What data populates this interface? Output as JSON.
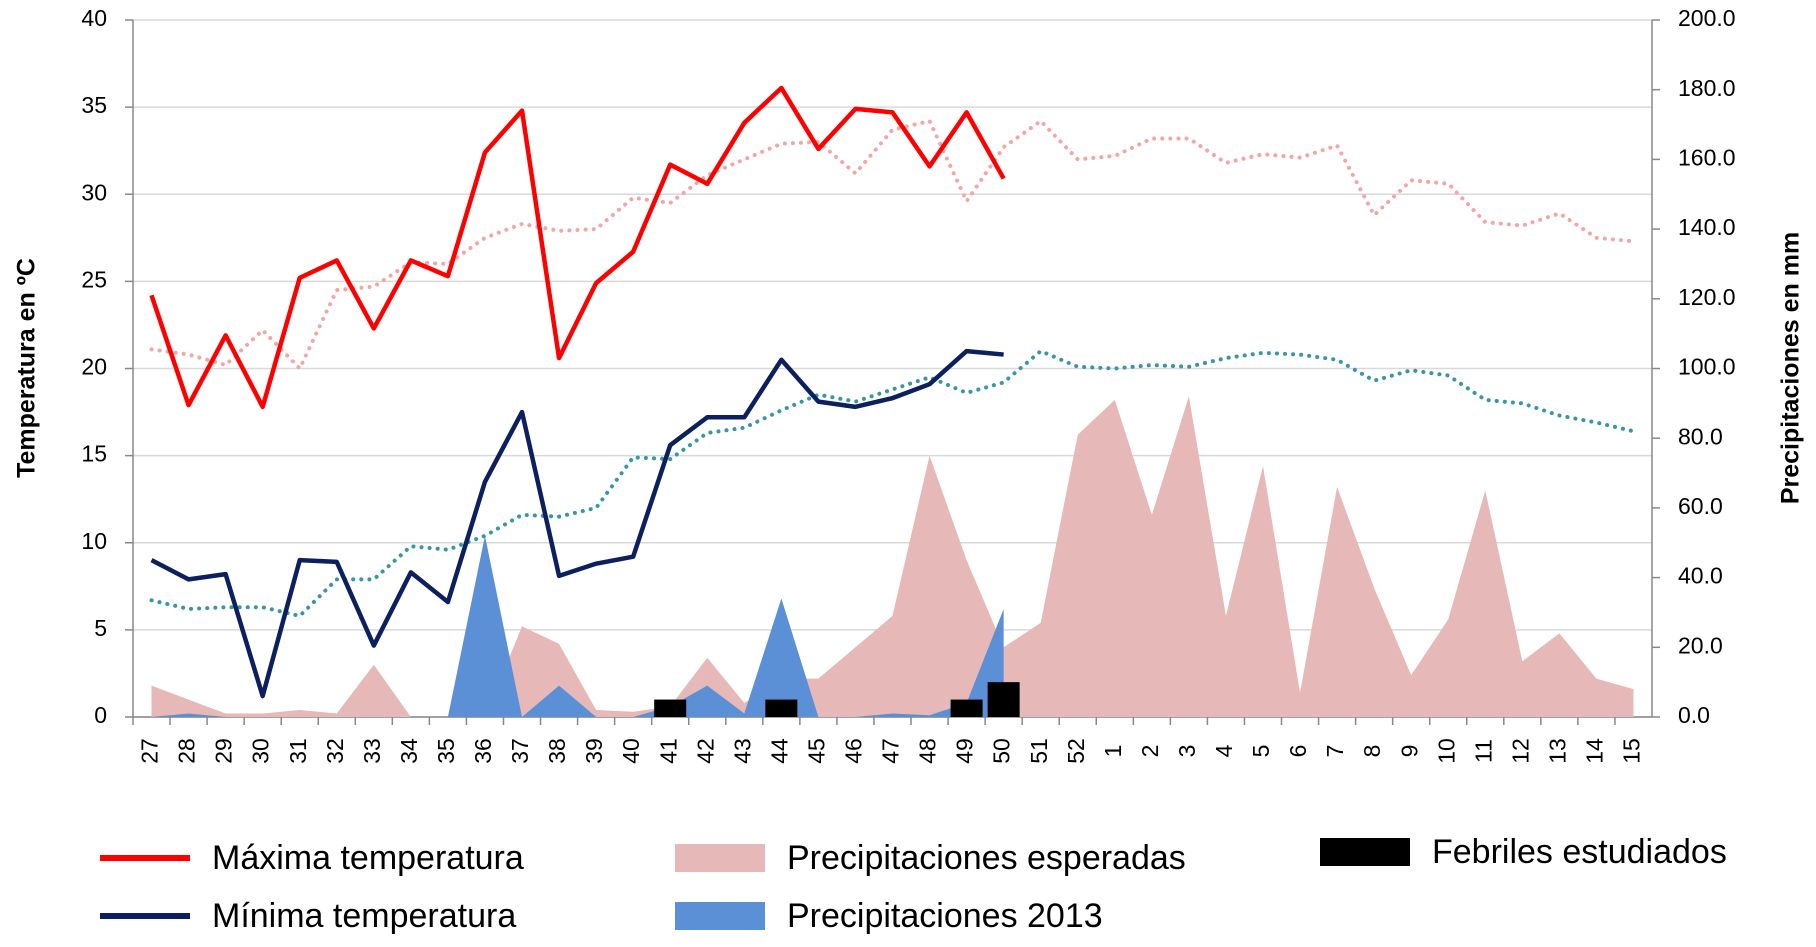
{
  "chart_data": {
    "type": "line",
    "categories": [
      "27",
      "28",
      "29",
      "30",
      "31",
      "32",
      "33",
      "34",
      "35",
      "36",
      "37",
      "38",
      "39",
      "40",
      "41",
      "42",
      "43",
      "44",
      "45",
      "46",
      "47",
      "48",
      "49",
      "50",
      "51",
      "52",
      "1",
      "2",
      "3",
      "4",
      "5",
      "6",
      "7",
      "8",
      "9",
      "10",
      "11",
      "12",
      "13",
      "14",
      "15"
    ],
    "ylabel": "Temperatura en ºC",
    "y2label": "Precipitaciones en mm",
    "ylim": [
      0,
      40
    ],
    "yticks": [
      0,
      5,
      10,
      15,
      20,
      25,
      30,
      35,
      40
    ],
    "y2lim": [
      0,
      200
    ],
    "y2ticks": [
      {
        "value": 0,
        "label": "0.0"
      },
      {
        "value": 20,
        "label": "20.0"
      },
      {
        "value": 40,
        "label": "40.0"
      },
      {
        "value": 60,
        "label": "60.0"
      },
      {
        "value": 80,
        "label": "80.0"
      },
      {
        "value": 100,
        "label": "100.0"
      },
      {
        "value": 120,
        "label": "120.0"
      },
      {
        "value": 140,
        "label": "140.0"
      },
      {
        "value": 160,
        "label": "160.0"
      },
      {
        "value": 180,
        "label": "180.0"
      },
      {
        "value": 200,
        "label": "200.0"
      }
    ],
    "grid": true,
    "legend": "bottom",
    "series": [
      {
        "name": "Precipitaciones esperadas",
        "type": "area",
        "axis": "y2",
        "color": "#e6b8b7",
        "values": [
          9,
          5,
          1,
          1,
          2,
          1,
          15,
          0,
          0,
          0,
          26,
          21,
          2,
          1.5,
          3,
          17,
          4,
          11,
          11,
          20,
          29,
          75,
          45,
          20,
          27,
          81,
          91,
          58,
          92,
          29,
          72,
          7,
          66,
          37,
          12,
          28,
          65,
          16,
          24,
          11,
          8
        ]
      },
      {
        "name": "Precipitaciones 2013",
        "type": "area",
        "axis": "y2",
        "color": "#5b8fd6",
        "values": [
          0,
          1,
          0,
          0,
          0,
          0,
          0,
          0,
          0,
          52,
          0,
          9,
          0,
          0,
          3,
          9,
          1,
          34,
          0,
          0,
          1,
          0.5,
          4,
          31,
          null,
          null,
          null,
          null,
          null,
          null,
          null,
          null,
          null,
          null,
          null,
          null,
          null,
          null,
          null,
          null,
          null
        ]
      },
      {
        "name": "Febriles estudiados",
        "type": "bar",
        "color": "#000000",
        "values": [
          null,
          null,
          null,
          null,
          null,
          null,
          null,
          null,
          null,
          null,
          null,
          null,
          null,
          null,
          1,
          null,
          null,
          1,
          null,
          null,
          null,
          null,
          1,
          2,
          null,
          null,
          null,
          null,
          null,
          null,
          null,
          null,
          null,
          null,
          null,
          null,
          null,
          null,
          null,
          null,
          null
        ]
      },
      {
        "type": "line",
        "style": "dotted",
        "color": "#f4a6a6",
        "values": [
          21.1,
          20.8,
          20.2,
          22.2,
          20.0,
          24.5,
          24.7,
          26.1,
          26.0,
          27.5,
          28.3,
          27.9,
          28.0,
          29.8,
          29.5,
          31.1,
          32.0,
          32.9,
          33.0,
          31.2,
          33.7,
          34.2,
          29.6,
          32.7,
          34.2,
          32.0,
          32.2,
          33.2,
          33.2,
          31.8,
          32.3,
          32.1,
          32.8,
          28.8,
          30.8,
          30.6,
          28.4,
          28.2,
          28.9,
          27.5,
          27.3
        ]
      },
      {
        "type": "line",
        "style": "dotted",
        "color": "#3a95a8",
        "values": [
          6.7,
          6.2,
          6.3,
          6.3,
          5.8,
          7.9,
          7.9,
          9.8,
          9.6,
          10.4,
          11.6,
          11.5,
          12.0,
          14.9,
          14.8,
          16.3,
          16.6,
          17.6,
          18.5,
          18.1,
          18.8,
          19.5,
          18.6,
          19.2,
          21.0,
          20.1,
          20.0,
          20.2,
          20.1,
          20.6,
          20.9,
          20.8,
          20.5,
          19.3,
          19.9,
          19.6,
          18.2,
          18.0,
          17.3,
          16.9,
          16.4
        ]
      },
      {
        "name": "Máxima temperatura",
        "type": "line",
        "color": "#ff0000",
        "values": [
          24.2,
          17.9,
          21.9,
          17.8,
          25.2,
          26.2,
          22.3,
          26.2,
          25.3,
          32.4,
          34.8,
          20.6,
          24.9,
          26.7,
          31.7,
          30.6,
          34.1,
          36.1,
          32.6,
          34.9,
          34.7,
          31.6,
          34.7,
          30.9,
          null,
          null,
          null,
          null,
          null,
          null,
          null,
          null,
          null,
          null,
          null,
          null,
          null,
          null,
          null,
          null,
          null
        ]
      },
      {
        "name": "Mínima temperatura",
        "type": "line",
        "color": "#0c1f5e",
        "values": [
          9.0,
          7.9,
          8.2,
          1.2,
          9.0,
          8.9,
          4.1,
          8.3,
          6.6,
          13.5,
          17.5,
          8.1,
          8.8,
          9.2,
          15.6,
          17.2,
          17.2,
          20.5,
          18.1,
          17.8,
          18.3,
          19.1,
          21.0,
          20.8,
          null,
          null,
          null,
          null,
          null,
          null,
          null,
          null,
          null,
          null,
          null,
          null,
          null,
          null,
          null,
          null,
          null
        ]
      }
    ]
  }
}
